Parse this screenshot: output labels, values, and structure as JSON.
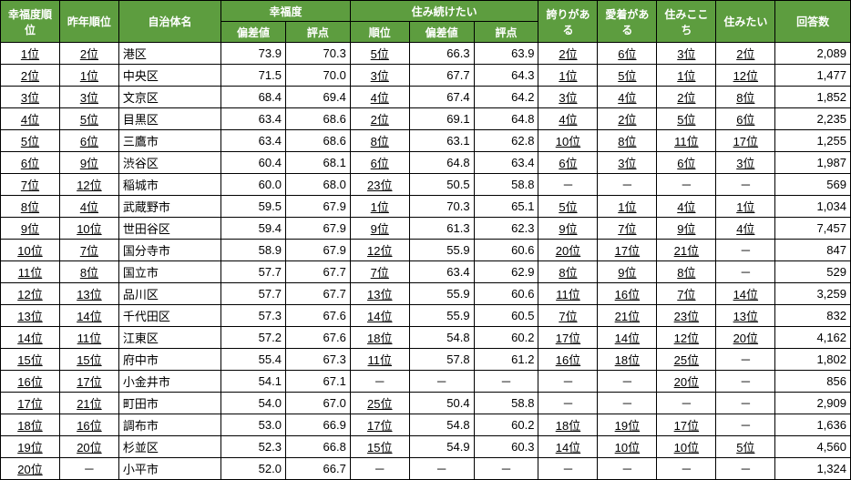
{
  "headers": {
    "group": [
      "幸福度順位",
      "昨年順位",
      "自治体名",
      "幸福度",
      "住み続けたい",
      "誇りがある",
      "愛着がある",
      "住みここち",
      "住みたい",
      "回答数"
    ],
    "sub_koufuku": [
      "偏差値",
      "評点"
    ],
    "sub_sumi": [
      "順位",
      "偏差値",
      "評点"
    ]
  },
  "rows": [
    {
      "r": "1位",
      "py": "2位",
      "name": "港区",
      "kd": "73.9",
      "ks": "70.3",
      "sr": "5位",
      "sd": "66.3",
      "ss": "63.9",
      "pr": "2位",
      "at": "6位",
      "lv": "3位",
      "wt": "2位",
      "resp": "2,089"
    },
    {
      "r": "2位",
      "py": "1位",
      "name": "中央区",
      "kd": "71.5",
      "ks": "70.0",
      "sr": "3位",
      "sd": "67.7",
      "ss": "64.3",
      "pr": "1位",
      "at": "5位",
      "lv": "1位",
      "wt": "12位",
      "resp": "1,477"
    },
    {
      "r": "3位",
      "py": "3位",
      "name": "文京区",
      "kd": "68.4",
      "ks": "69.4",
      "sr": "4位",
      "sd": "67.4",
      "ss": "64.2",
      "pr": "3位",
      "at": "4位",
      "lv": "2位",
      "wt": "8位",
      "resp": "1,852"
    },
    {
      "r": "4位",
      "py": "5位",
      "name": "目黒区",
      "kd": "63.4",
      "ks": "68.6",
      "sr": "2位",
      "sd": "69.1",
      "ss": "64.8",
      "pr": "4位",
      "at": "2位",
      "lv": "5位",
      "wt": "6位",
      "resp": "2,235"
    },
    {
      "r": "5位",
      "py": "6位",
      "name": "三鷹市",
      "kd": "63.4",
      "ks": "68.6",
      "sr": "8位",
      "sd": "63.1",
      "ss": "62.8",
      "pr": "10位",
      "at": "8位",
      "lv": "11位",
      "wt": "17位",
      "resp": "1,255"
    },
    {
      "r": "6位",
      "py": "9位",
      "name": "渋谷区",
      "kd": "60.4",
      "ks": "68.1",
      "sr": "6位",
      "sd": "64.8",
      "ss": "63.4",
      "pr": "6位",
      "at": "3位",
      "lv": "6位",
      "wt": "3位",
      "resp": "1,987"
    },
    {
      "r": "7位",
      "py": "12位",
      "name": "稲城市",
      "kd": "60.0",
      "ks": "68.0",
      "sr": "23位",
      "sd": "50.5",
      "ss": "58.8",
      "pr": "－",
      "at": "－",
      "lv": "－",
      "wt": "－",
      "resp": "569"
    },
    {
      "r": "8位",
      "py": "4位",
      "name": "武蔵野市",
      "kd": "59.5",
      "ks": "67.9",
      "sr": "1位",
      "sd": "70.3",
      "ss": "65.1",
      "pr": "5位",
      "at": "1位",
      "lv": "4位",
      "wt": "1位",
      "resp": "1,034"
    },
    {
      "r": "9位",
      "py": "10位",
      "name": "世田谷区",
      "kd": "59.4",
      "ks": "67.9",
      "sr": "9位",
      "sd": "61.3",
      "ss": "62.3",
      "pr": "9位",
      "at": "7位",
      "lv": "9位",
      "wt": "4位",
      "resp": "7,457"
    },
    {
      "r": "10位",
      "py": "7位",
      "name": "国分寺市",
      "kd": "58.9",
      "ks": "67.9",
      "sr": "12位",
      "sd": "55.9",
      "ss": "60.6",
      "pr": "20位",
      "at": "17位",
      "lv": "21位",
      "wt": "－",
      "resp": "847"
    },
    {
      "r": "11位",
      "py": "8位",
      "name": "国立市",
      "kd": "57.7",
      "ks": "67.7",
      "sr": "7位",
      "sd": "63.4",
      "ss": "62.9",
      "pr": "8位",
      "at": "9位",
      "lv": "8位",
      "wt": "－",
      "resp": "529"
    },
    {
      "r": "12位",
      "py": "13位",
      "name": "品川区",
      "kd": "57.7",
      "ks": "67.7",
      "sr": "13位",
      "sd": "55.9",
      "ss": "60.6",
      "pr": "11位",
      "at": "16位",
      "lv": "7位",
      "wt": "14位",
      "resp": "3,259"
    },
    {
      "r": "13位",
      "py": "14位",
      "name": "千代田区",
      "kd": "57.3",
      "ks": "67.6",
      "sr": "14位",
      "sd": "55.9",
      "ss": "60.5",
      "pr": "7位",
      "at": "21位",
      "lv": "23位",
      "wt": "13位",
      "resp": "832"
    },
    {
      "r": "14位",
      "py": "11位",
      "name": "江東区",
      "kd": "57.2",
      "ks": "67.6",
      "sr": "18位",
      "sd": "54.8",
      "ss": "60.2",
      "pr": "17位",
      "at": "14位",
      "lv": "12位",
      "wt": "20位",
      "resp": "4,162"
    },
    {
      "r": "15位",
      "py": "15位",
      "name": "府中市",
      "kd": "55.4",
      "ks": "67.3",
      "sr": "11位",
      "sd": "57.8",
      "ss": "61.2",
      "pr": "16位",
      "at": "18位",
      "lv": "25位",
      "wt": "－",
      "resp": "1,802"
    },
    {
      "r": "16位",
      "py": "17位",
      "name": "小金井市",
      "kd": "54.1",
      "ks": "67.1",
      "sr": "－",
      "sd": "－",
      "ss": "－",
      "pr": "－",
      "at": "－",
      "lv": "20位",
      "wt": "－",
      "resp": "856"
    },
    {
      "r": "17位",
      "py": "21位",
      "name": "町田市",
      "kd": "54.0",
      "ks": "67.0",
      "sr": "25位",
      "sd": "50.4",
      "ss": "58.8",
      "pr": "－",
      "at": "－",
      "lv": "－",
      "wt": "－",
      "resp": "2,909"
    },
    {
      "r": "18位",
      "py": "16位",
      "name": "調布市",
      "kd": "53.0",
      "ks": "66.9",
      "sr": "17位",
      "sd": "54.8",
      "ss": "60.2",
      "pr": "18位",
      "at": "19位",
      "lv": "17位",
      "wt": "－",
      "resp": "1,636"
    },
    {
      "r": "19位",
      "py": "20位",
      "name": "杉並区",
      "kd": "52.3",
      "ks": "66.8",
      "sr": "15位",
      "sd": "54.9",
      "ss": "60.3",
      "pr": "14位",
      "at": "10位",
      "lv": "10位",
      "wt": "5位",
      "resp": "4,560"
    },
    {
      "r": "20位",
      "py": "－",
      "name": "小平市",
      "kd": "52.0",
      "ks": "66.7",
      "sr": "－",
      "sd": "－",
      "ss": "－",
      "pr": "－",
      "at": "－",
      "lv": "－",
      "wt": "－",
      "resp": "1,324"
    }
  ]
}
